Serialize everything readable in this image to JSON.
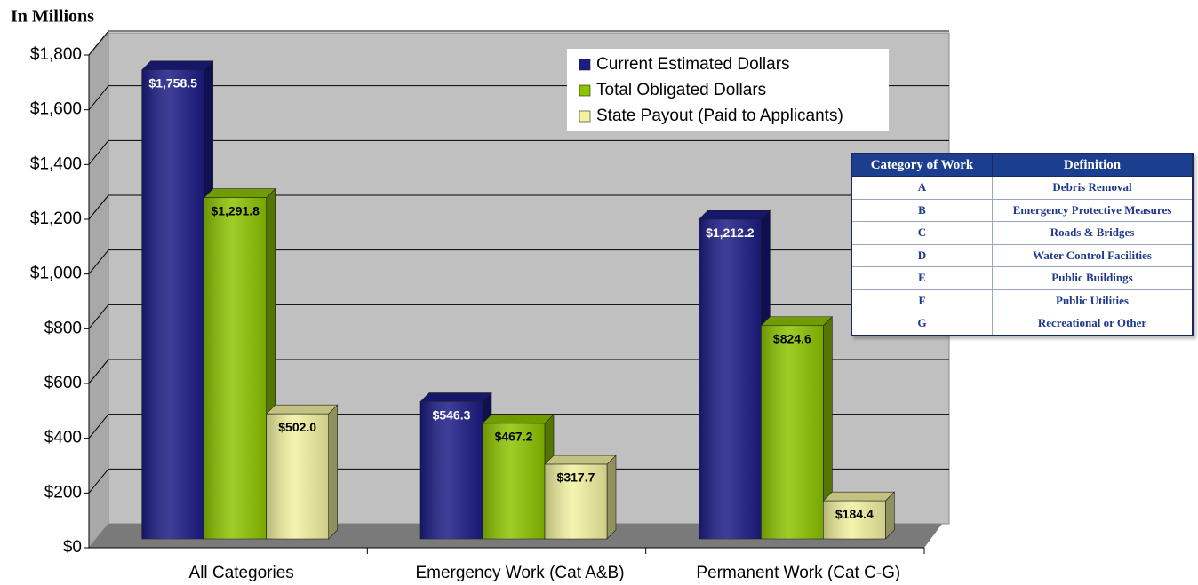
{
  "chart_data": {
    "type": "bar",
    "y_label": "In Millions",
    "categories": [
      "All Categories",
      "Emergency Work (Cat A&B)",
      "Permanent Work (Cat C-G)"
    ],
    "series": [
      {
        "name": "Current Estimated Dollars",
        "color": "#1c1c86",
        "values": [
          1758.5,
          546.3,
          1212.2
        ],
        "value_labels": [
          "$1,758.5",
          "$546.3",
          "$1,212.2"
        ]
      },
      {
        "name": "Total Obligated Dollars",
        "color": "#8cc400",
        "values": [
          1291.8,
          467.2,
          824.6
        ],
        "value_labels": [
          "$1,291.8",
          "$467.2",
          "$824.6"
        ]
      },
      {
        "name": "State Payout (Paid to Applicants)",
        "color": "#f2f2a0",
        "values": [
          502.0,
          317.7,
          184.4
        ],
        "value_labels": [
          "$502.0",
          "$317.7",
          "$184.4"
        ]
      }
    ],
    "ylim": [
      0,
      1800
    ],
    "yticks": [
      {
        "value": 0,
        "label": "$0"
      },
      {
        "value": 200,
        "label": "$200"
      },
      {
        "value": 400,
        "label": "$400"
      },
      {
        "value": 600,
        "label": "$600"
      },
      {
        "value": 800,
        "label": "$800"
      },
      {
        "value": 1000,
        "label": "$1,000"
      },
      {
        "value": 1200,
        "label": "$1,200"
      },
      {
        "value": 1400,
        "label": "$1,400"
      },
      {
        "value": 1600,
        "label": "$1,600"
      },
      {
        "value": 1800,
        "label": "$1,800"
      }
    ],
    "grid": true,
    "legend": "top-right",
    "table": {
      "columns": [
        "Category of Work",
        "Definition"
      ],
      "rows": [
        [
          "A",
          "Debris Removal"
        ],
        [
          "B",
          "Emergency Protective Measures"
        ],
        [
          "C",
          "Roads & Bridges"
        ],
        [
          "D",
          "Water Control Facilities"
        ],
        [
          "E",
          "Public Buildings"
        ],
        [
          "F",
          "Public Utilities"
        ],
        [
          "G",
          "Recreational or Other"
        ]
      ]
    }
  }
}
